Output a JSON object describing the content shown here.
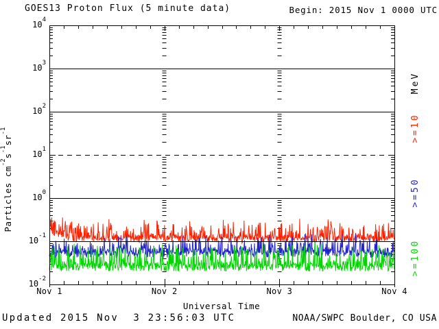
{
  "header": {
    "begin": "Begin: 2015 Nov 1 0000 UTC"
  },
  "footer": {
    "updated": "Updated 2015 Nov  3 23:56:03 UTC",
    "source": "NOAA/SWPC Boulder, CO USA"
  },
  "legend": {
    "unit_label": "MeV",
    "unit_color": "#000000",
    "entries": [
      {
        "label": ">=10",
        "color": "#ff2000"
      },
      {
        "label": ">=50",
        "color": "#2222cc"
      },
      {
        "label": ">=100",
        "color": "#00d500"
      }
    ]
  },
  "chart_data": {
    "type": "line",
    "title": "GOES13 Proton Flux (5 minute data)",
    "xlabel": "Universal Time",
    "ylabel": "Particles cm-2s-1sr-1",
    "ylabel_parts": [
      [
        "t",
        "Particles cm"
      ],
      [
        "s",
        "-2"
      ],
      [
        "t",
        "s"
      ],
      [
        "s",
        "-1"
      ],
      [
        "t",
        "sr"
      ],
      [
        "s",
        "-1"
      ]
    ],
    "x_tick_labels": [
      "Nov 1",
      "Nov 2",
      "Nov 3",
      "Nov 4"
    ],
    "y_tick_exponents": [
      4,
      3,
      2,
      1,
      0,
      -1,
      -2
    ],
    "y_log10_range": [
      -2,
      4
    ],
    "days": 3,
    "points_per_day": 288,
    "grid": {
      "solid_levels_log10": [
        3,
        2,
        0,
        -1
      ],
      "dashed_levels_log10": [
        1
      ],
      "day_boundary_tick_columns": [
        1,
        2
      ]
    },
    "series": [
      {
        "name": ">=10 MeV",
        "color": "#ff2000",
        "seed": 13,
        "log10_base": -0.93,
        "jitter": 0.085,
        "spike_prob": 0.33,
        "spike_amp": 0.38,
        "start_boost": 0.26,
        "boost_decay": 40,
        "floor": 0.085,
        "summary": {
          "typical": 0.13,
          "min": 0.09,
          "max": 0.36
        }
      },
      {
        "name": ">=50 MeV",
        "color": "#2222cc",
        "seed": 50,
        "log10_base": -1.26,
        "jitter": 0.1,
        "spike_prob": 0.3,
        "spike_amp": 0.36,
        "start_boost": 0,
        "boost_decay": 0,
        "floor": 0.035,
        "summary": {
          "typical": 0.055,
          "min": 0.035,
          "max": 0.15
        }
      },
      {
        "name": ">=100 MeV",
        "color": "#00d500",
        "seed": 100,
        "log10_base": -1.58,
        "jitter": 0.12,
        "spike_prob": 0.3,
        "spike_amp": 0.5,
        "start_boost": 0,
        "boost_decay": 0,
        "floor": 0.0205,
        "summary": {
          "typical": 0.026,
          "min": 0.02,
          "max": 0.1
        }
      }
    ]
  }
}
